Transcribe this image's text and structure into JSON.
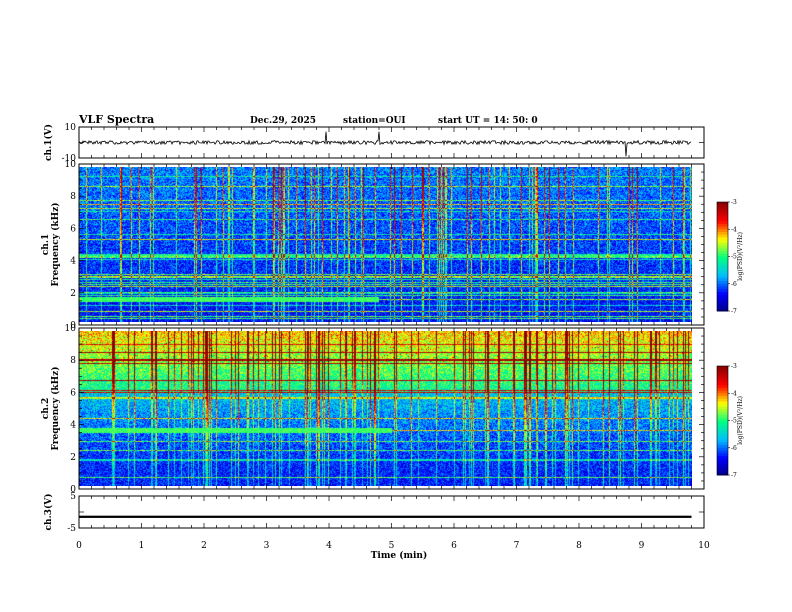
{
  "header": {
    "title": "VLF Spectra",
    "date": "Dec.29, 2025",
    "station": "station=OUI",
    "start": "start  UT =   14: 50: 0"
  },
  "chart_data": {
    "type": "heatmap",
    "title": "VLF Spectra",
    "xlabel": "Time  (min)",
    "xlim": [
      0,
      10
    ],
    "x_ticks": [
      "0",
      "1",
      "2",
      "3",
      "4",
      "5",
      "6",
      "7",
      "8",
      "9",
      "10"
    ],
    "data_end_min": 9.8,
    "panels": [
      {
        "id": "ch1-waveform",
        "kind": "line",
        "ylabel": "ch.1(V)",
        "ylim": [
          -10,
          10
        ],
        "y_ticks": [
          "10",
          "-10"
        ],
        "baseline": 0,
        "noise": 1.2,
        "spikes": [
          {
            "t": 3.95,
            "v": 7
          },
          {
            "t": 4.8,
            "v": 7
          },
          {
            "t": 8.75,
            "v": -9
          }
        ]
      },
      {
        "id": "ch1-spectrogram",
        "kind": "spectrogram",
        "ylabel_top": "ch.1",
        "ylabel": "Frequency  (kHz)",
        "ylim": [
          0,
          10
        ],
        "y_ticks": [
          "0",
          "2",
          "4",
          "6",
          "8",
          "10"
        ],
        "colorbar": {
          "label": "log(PSD)(V²/Hz)",
          "range": [
            -7,
            -3
          ],
          "ticks": [
            "-3",
            "-4",
            "-5",
            "-6",
            "-7"
          ]
        },
        "persistent_band_khz": 1.5,
        "persistent_band_until_min": 4.8
      },
      {
        "id": "ch2-spectrogram",
        "kind": "spectrogram",
        "ylabel_top": "ch.2",
        "ylabel": "Frequency  (kHz)",
        "ylim": [
          0,
          10
        ],
        "y_ticks": [
          "0",
          "2",
          "4",
          "6",
          "8",
          "10"
        ],
        "colorbar": {
          "label": "log(PSD)(V²/Hz)",
          "range": [
            -7,
            -3
          ],
          "ticks": [
            "-3",
            "-4",
            "-5",
            "-6",
            "-7"
          ]
        },
        "persistent_band_khz": 3.6,
        "persistent_band_until_min": 5.0
      },
      {
        "id": "ch3-waveform",
        "kind": "line",
        "ylabel": "ch.3(V)",
        "ylim": [
          -5,
          5
        ],
        "y_ticks": [
          "5",
          "-5"
        ],
        "baseline": -1.5,
        "noise": 0.35,
        "spikes": []
      }
    ]
  },
  "colors": {
    "colormap": [
      "#000080",
      "#0000ff",
      "#00bfff",
      "#00ff80",
      "#ffff00",
      "#ff0000",
      "#8b0000"
    ],
    "trace": "#000000",
    "axis": "#000000",
    "background": "#ffffff"
  }
}
